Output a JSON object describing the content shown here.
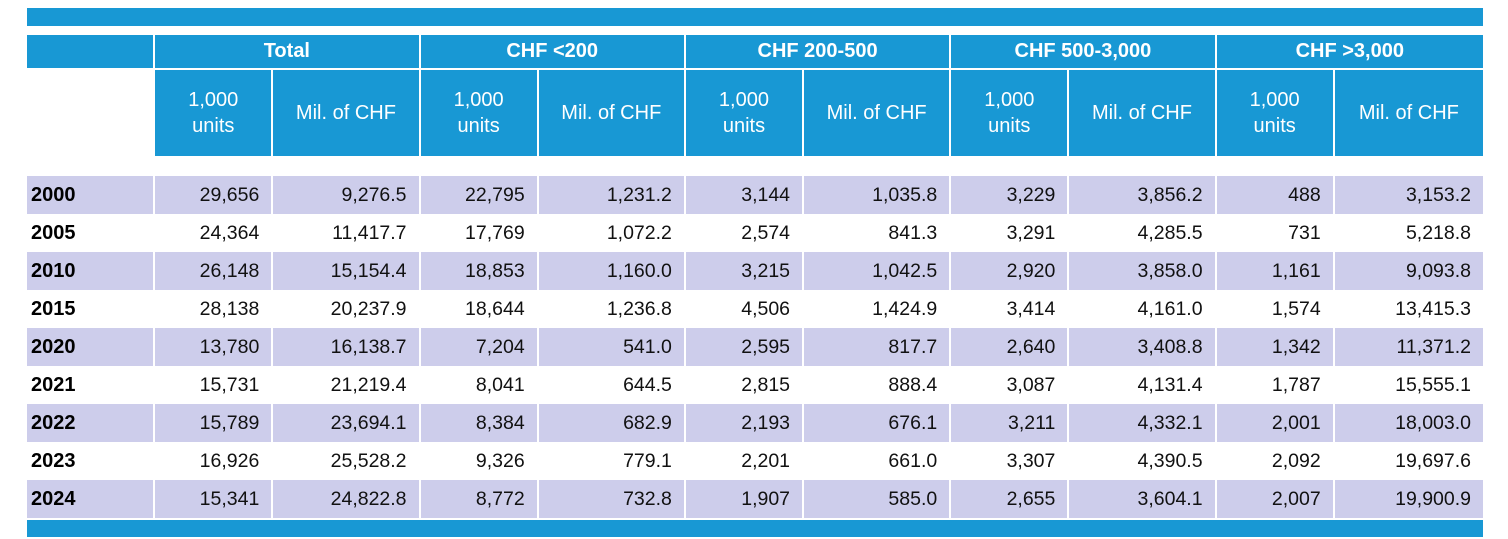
{
  "colors": {
    "header_blue": "#1898d4",
    "row_alternate": "#cdcdeb",
    "row_plain": "#ffffff",
    "header_text": "#ffffff",
    "body_text": "#111111"
  },
  "decor": {
    "top_bar": "blue-strip",
    "bottom_bar": "blue-strip"
  },
  "chart_data": {
    "type": "table",
    "title": "",
    "groups": [
      {
        "label": "Total"
      },
      {
        "label": "CHF <200"
      },
      {
        "label": "CHF 200-500"
      },
      {
        "label": "CHF 500-3,000"
      },
      {
        "label": "CHF >3,000"
      }
    ],
    "units_label": "1,000\nunits",
    "mil_label": "Mil. of CHF",
    "rows": [
      {
        "year": "2000",
        "values": [
          "29,656",
          "9,276.5",
          "22,795",
          "1,231.2",
          "3,144",
          "1,035.8",
          "3,229",
          "3,856.2",
          "488",
          "3,153.2"
        ]
      },
      {
        "year": "2005",
        "values": [
          "24,364",
          "11,417.7",
          "17,769",
          "1,072.2",
          "2,574",
          "841.3",
          "3,291",
          "4,285.5",
          "731",
          "5,218.8"
        ]
      },
      {
        "year": "2010",
        "values": [
          "26,148",
          "15,154.4",
          "18,853",
          "1,160.0",
          "3,215",
          "1,042.5",
          "2,920",
          "3,858.0",
          "1,161",
          "9,093.8"
        ]
      },
      {
        "year": "2015",
        "values": [
          "28,138",
          "20,237.9",
          "18,644",
          "1,236.8",
          "4,506",
          "1,424.9",
          "3,414",
          "4,161.0",
          "1,574",
          "13,415.3"
        ]
      },
      {
        "year": "2020",
        "values": [
          "13,780",
          "16,138.7",
          "7,204",
          "541.0",
          "2,595",
          "817.7",
          "2,640",
          "3,408.8",
          "1,342",
          "11,371.2"
        ]
      },
      {
        "year": "2021",
        "values": [
          "15,731",
          "21,219.4",
          "8,041",
          "644.5",
          "2,815",
          "888.4",
          "3,087",
          "4,131.4",
          "1,787",
          "15,555.1"
        ]
      },
      {
        "year": "2022",
        "values": [
          "15,789",
          "23,694.1",
          "8,384",
          "682.9",
          "2,193",
          "676.1",
          "3,211",
          "4,332.1",
          "2,001",
          "18,003.0"
        ]
      },
      {
        "year": "2023",
        "values": [
          "16,926",
          "25,528.2",
          "9,326",
          "779.1",
          "2,201",
          "661.0",
          "3,307",
          "4,390.5",
          "2,092",
          "19,697.6"
        ]
      },
      {
        "year": "2024",
        "values": [
          "15,341",
          "24,822.8",
          "8,772",
          "732.8",
          "1,907",
          "585.0",
          "2,655",
          "3,604.1",
          "2,007",
          "19,900.9"
        ]
      }
    ]
  }
}
